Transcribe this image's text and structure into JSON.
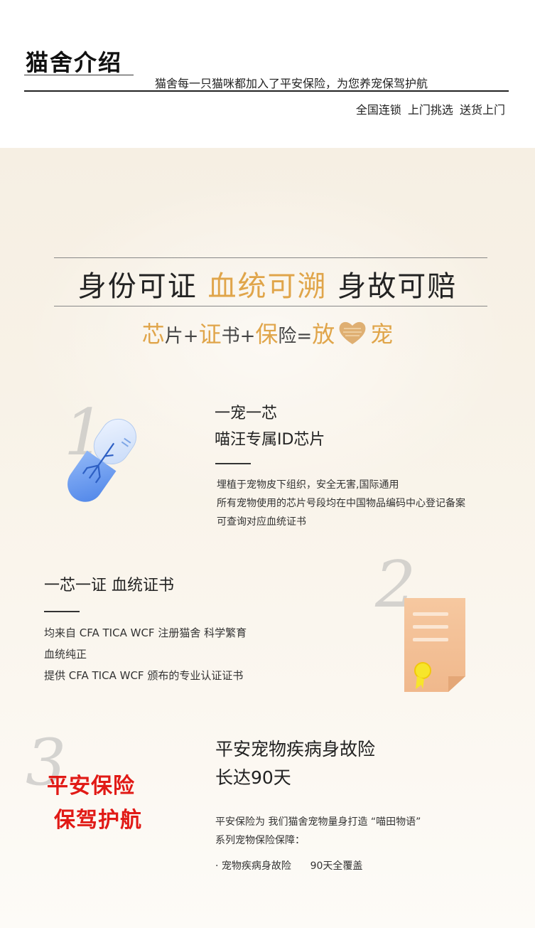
{
  "header": {
    "title": "猫舍介绍",
    "subtitle": "猫舍每一只猫咪都加入了平安保险，为您养宠保驾护航",
    "tags": "全国连锁  上门挑选  送货上门"
  },
  "banner": {
    "title_part1": "身份可证",
    "title_part2": "血统可溯",
    "title_part3": "身故可赔",
    "formula": {
      "chip": "芯",
      "chip_rest": "片",
      "plus1": "+",
      "cert": "证",
      "cert_rest": "书",
      "plus2": "+",
      "ins": "保",
      "ins_rest": "险",
      "eq": "=",
      "result_pre": "放",
      "result_post": "宠"
    }
  },
  "section1": {
    "numeral": "1",
    "heading1": "一宠一芯",
    "heading2": "喵汪专属ID芯片",
    "lines": [
      "埋植于宠物皮下组织，安全无害,国际通用",
      "所有宠物使用的芯片号段均在中国物品编码中心登记备案",
      "可查询对应血统证书"
    ]
  },
  "section2": {
    "numeral": "2",
    "heading": "一芯一证 血统证书",
    "lines": [
      "均来自 CFA  TICA  WCF 注册猫舍  科学繁育",
      "血统纯正",
      "提供 CFA TICA  WCF  颁布的专业认证证书"
    ]
  },
  "section3": {
    "numeral": "3",
    "red1": "平安保险",
    "red2": "保驾护航",
    "heading1": "平安宠物疾病身故险",
    "heading2": "长达90天",
    "line1": "平安保险为 我们猫舍宠物量身打造 “喵田物语”",
    "line2": "系列宠物保险保障：",
    "bullet": "· 宠物疾病身故险      90天全覆盖"
  },
  "colors": {
    "accent": "#e0a54a",
    "red": "#e11a16",
    "capsule": "#6f9ff0"
  },
  "icons": [
    "capsule-chip-icon",
    "certificate-icon",
    "heart-icon"
  ]
}
